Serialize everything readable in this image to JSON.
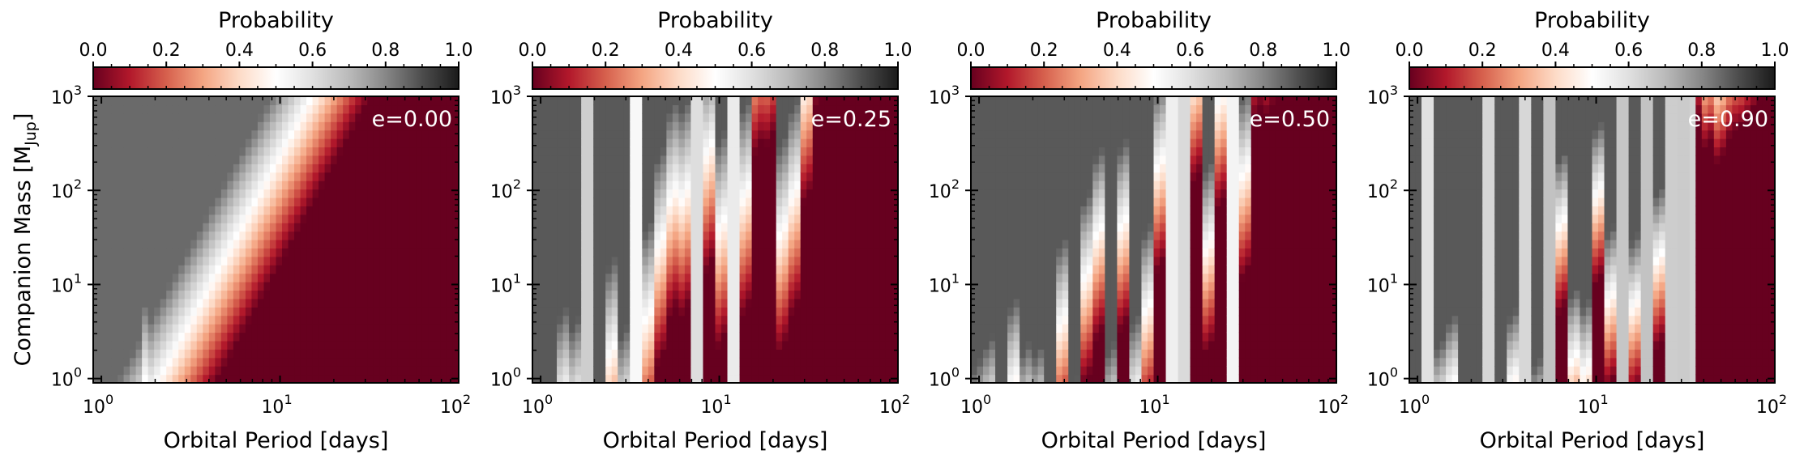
{
  "chart_data": {
    "type": "heatmap",
    "colorbar": {
      "label": "Probability",
      "range": [
        0,
        1
      ],
      "ticks": [
        "0.0",
        "0.2",
        "0.4",
        "0.6",
        "0.8",
        "1.0"
      ],
      "colormap": [
        "#67001f",
        "#b2182b",
        "#d6604d",
        "#f4a582",
        "#fddbc7",
        "#ffffff",
        "#e0e0e0",
        "#bababa",
        "#878787",
        "#4d4d4d",
        "#1a1a1a"
      ]
    },
    "xlabel": "Orbital Period [days]",
    "ylabel_main": "Companion Mass [M",
    "ylabel_sub": "Jup",
    "ylabel_end": "]",
    "x_scale": "log",
    "y_scale": "log",
    "xlim": [
      0.9,
      100
    ],
    "ylim": [
      0.9,
      1000
    ],
    "x_ticks": [
      {
        "base": "10",
        "exp": "0",
        "value": 1
      },
      {
        "base": "10",
        "exp": "1",
        "value": 10
      },
      {
        "base": "10",
        "exp": "2",
        "value": 100
      }
    ],
    "y_ticks": [
      {
        "base": "10",
        "exp": "0",
        "value": 1
      },
      {
        "base": "10",
        "exp": "1",
        "value": 10
      },
      {
        "base": "10",
        "exp": "2",
        "value": 100
      },
      {
        "base": "10",
        "exp": "3",
        "value": 1000
      }
    ],
    "panels": [
      {
        "label": "e=0.00",
        "eccentricity": 0.0
      },
      {
        "label": "e=0.25",
        "eccentricity": 0.25
      },
      {
        "label": "e=0.50",
        "eccentricity": 0.5
      },
      {
        "label": "e=0.90",
        "eccentricity": 0.9
      }
    ]
  }
}
